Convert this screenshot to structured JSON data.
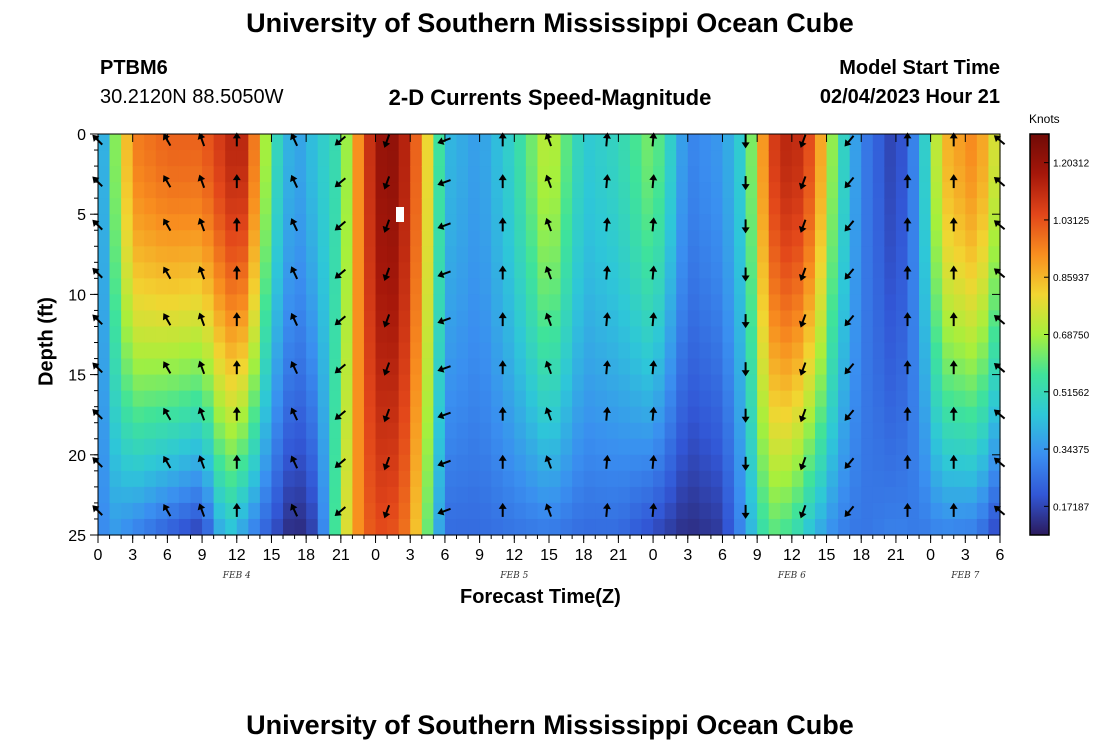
{
  "page": {
    "title": "University of Southern Mississippi Ocean Cube",
    "footer_title": "University of Southern Mississippi Ocean Cube"
  },
  "station": {
    "id": "PTBM6",
    "coords": "30.2120N  88.5050W"
  },
  "model": {
    "start_label": "Model Start Time",
    "start_value": "02/04/2023 Hour 21"
  },
  "chart_data": {
    "type": "heatmap",
    "title": "2-D Currents Speed-Magnitude",
    "xlabel": "Forecast Time(Z)",
    "ylabel": "Depth (ft)",
    "x_ticks": [
      "0",
      "3",
      "6",
      "9",
      "12",
      "15",
      "18",
      "21",
      "0",
      "3",
      "6",
      "9",
      "12",
      "15",
      "18",
      "21",
      "0",
      "3",
      "6",
      "9",
      "12",
      "15",
      "18",
      "21",
      "0",
      "3",
      "6"
    ],
    "x_range_hours": [
      0,
      78
    ],
    "date_labels": [
      {
        "text": "FEB 4",
        "hour": 12
      },
      {
        "text": "FEB 5",
        "hour": 36
      },
      {
        "text": "FEB 6",
        "hour": 60
      },
      {
        "text": "FEB 7",
        "hour": 75
      }
    ],
    "y_ticks": [
      "0",
      "5",
      "10",
      "15",
      "20",
      "25"
    ],
    "y_range_ft": [
      0,
      25
    ],
    "y_inverted": true,
    "colorbar": {
      "label": "Knots",
      "ticks": [
        "1.20312",
        "1.03125",
        "0.85937",
        "0.68750",
        "0.51562",
        "0.34375",
        "0.17187"
      ],
      "range": [
        0.0859,
        1.2891
      ],
      "colors": [
        "#2b1a5c",
        "#3257d6",
        "#3a8ff0",
        "#2ec7d8",
        "#3fe39a",
        "#a6f03c",
        "#f2d531",
        "#f88e1f",
        "#e2461a",
        "#a5170a",
        "#700a06"
      ]
    },
    "speed_profile_by_hour": [
      {
        "hour": 0,
        "surface": 0.25,
        "bottom": 0.28
      },
      {
        "hour": 1,
        "surface": 0.55,
        "bottom": 0.36
      },
      {
        "hour": 3,
        "surface": 0.95,
        "bottom": 0.3
      },
      {
        "hour": 6,
        "surface": 1.0,
        "bottom": 0.22
      },
      {
        "hour": 9,
        "surface": 1.0,
        "bottom": 0.15
      },
      {
        "hour": 11,
        "surface": 1.1,
        "bottom": 0.45
      },
      {
        "hour": 12,
        "surface": 1.15,
        "bottom": 0.4
      },
      {
        "hour": 13,
        "surface": 1.1,
        "bottom": 0.32
      },
      {
        "hour": 15,
        "surface": 0.55,
        "bottom": 0.2
      },
      {
        "hour": 17,
        "surface": 0.35,
        "bottom": 0.1
      },
      {
        "hour": 19,
        "surface": 0.45,
        "bottom": 0.18
      },
      {
        "hour": 21,
        "surface": 0.55,
        "bottom": 0.7
      },
      {
        "hour": 23,
        "surface": 1.05,
        "bottom": 1.0
      },
      {
        "hour": 25,
        "surface": 1.25,
        "bottom": 1.05
      },
      {
        "hour": 27,
        "surface": 1.1,
        "bottom": 0.95
      },
      {
        "hour": 29,
        "surface": 0.7,
        "bottom": 0.5
      },
      {
        "hour": 30,
        "surface": 0.42,
        "bottom": 0.25
      },
      {
        "hour": 33,
        "surface": 0.35,
        "bottom": 0.25
      },
      {
        "hour": 36,
        "surface": 0.5,
        "bottom": 0.27
      },
      {
        "hour": 39,
        "surface": 0.75,
        "bottom": 0.28
      },
      {
        "hour": 42,
        "surface": 0.45,
        "bottom": 0.25
      },
      {
        "hour": 45,
        "surface": 0.5,
        "bottom": 0.25
      },
      {
        "hour": 48,
        "surface": 0.65,
        "bottom": 0.18
      },
      {
        "hour": 51,
        "surface": 0.3,
        "bottom": 0.12
      },
      {
        "hour": 54,
        "surface": 0.35,
        "bottom": 0.15
      },
      {
        "hour": 56,
        "surface": 0.5,
        "bottom": 0.35
      },
      {
        "hour": 58,
        "surface": 1.05,
        "bottom": 0.6
      },
      {
        "hour": 60,
        "surface": 1.15,
        "bottom": 0.55
      },
      {
        "hour": 62,
        "surface": 1.0,
        "bottom": 0.4
      },
      {
        "hour": 64,
        "surface": 0.55,
        "bottom": 0.3
      },
      {
        "hour": 66,
        "surface": 0.3,
        "bottom": 0.27
      },
      {
        "hour": 69,
        "surface": 0.15,
        "bottom": 0.3
      },
      {
        "hour": 71,
        "surface": 0.35,
        "bottom": 0.28
      },
      {
        "hour": 73,
        "surface": 0.85,
        "bottom": 0.3
      },
      {
        "hour": 76,
        "surface": 0.95,
        "bottom": 0.28
      },
      {
        "hour": 78,
        "surface": 0.7,
        "bottom": 0.15
      }
    ],
    "vector_rows_ft": [
      0.4,
      3.0,
      5.7,
      8.7,
      11.6,
      14.6,
      17.5,
      20.5,
      23.5
    ],
    "vector_columns": [
      {
        "hour": 0,
        "direction_deg": 315
      },
      {
        "hour": 6,
        "direction_deg": 330
      },
      {
        "hour": 9,
        "direction_deg": 340
      },
      {
        "hour": 12,
        "direction_deg": 0
      },
      {
        "hour": 17,
        "direction_deg": 335
      },
      {
        "hour": 21,
        "direction_deg": 230
      },
      {
        "hour": 25,
        "direction_deg": 200
      },
      {
        "hour": 30,
        "direction_deg": 250
      },
      {
        "hour": 35,
        "direction_deg": 0
      },
      {
        "hour": 39,
        "direction_deg": 340
      },
      {
        "hour": 44,
        "direction_deg": 5
      },
      {
        "hour": 48,
        "direction_deg": 5
      },
      {
        "hour": 56,
        "direction_deg": 180
      },
      {
        "hour": 61,
        "direction_deg": 200
      },
      {
        "hour": 65,
        "direction_deg": 220
      },
      {
        "hour": 70,
        "direction_deg": 0
      },
      {
        "hour": 74,
        "direction_deg": 0
      },
      {
        "hour": 78,
        "direction_deg": 310
      }
    ]
  }
}
